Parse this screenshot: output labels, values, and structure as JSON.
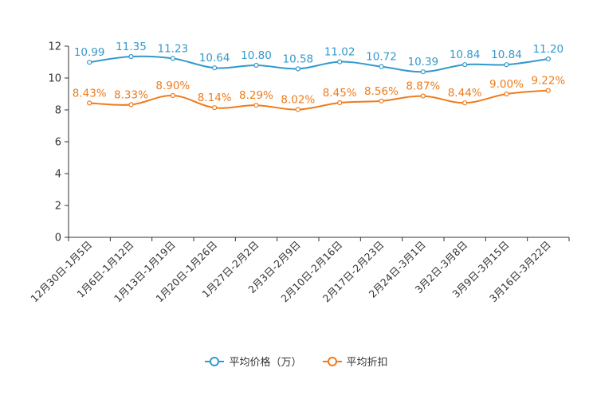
{
  "chart_data": {
    "type": "line",
    "title": "",
    "xlabel": "",
    "ylabel": "",
    "ylim": [
      0,
      12
    ],
    "yticks": [
      0,
      2,
      4,
      6,
      8,
      10,
      12
    ],
    "categories": [
      "12月30日-1月5日",
      "1月6日-1月12日",
      "1月13日-1月19日",
      "1月20日-1月26日",
      "1月27日-2月2日",
      "2月3日-2月9日",
      "2月10日-2月16日",
      "2月17日-2月23日",
      "2月24日-3月1日",
      "3月2日-3月8日",
      "3月9日-3月15日",
      "3月16日-3月22日"
    ],
    "series": [
      {
        "name": "平均价格（万）",
        "color": "#3399cc",
        "values": [
          10.99,
          11.35,
          11.23,
          10.64,
          10.8,
          10.58,
          11.02,
          10.72,
          10.39,
          10.84,
          10.84,
          11.2
        ],
        "labels": [
          "10.99",
          "11.35",
          "11.23",
          "10.64",
          "10.80",
          "10.58",
          "11.02",
          "10.72",
          "10.39",
          "10.84",
          "10.84",
          "11.20"
        ]
      },
      {
        "name": "平均折扣",
        "color": "#f07b1a",
        "values": [
          8.43,
          8.33,
          8.9,
          8.14,
          8.29,
          8.02,
          8.45,
          8.56,
          8.87,
          8.44,
          9.0,
          9.22
        ],
        "labels": [
          "8.43%",
          "8.33%",
          "8.90%",
          "8.14%",
          "8.29%",
          "8.02%",
          "8.45%",
          "8.56%",
          "8.87%",
          "8.44%",
          "9.00%",
          "9.22%"
        ]
      }
    ],
    "legend_position": "bottom"
  }
}
